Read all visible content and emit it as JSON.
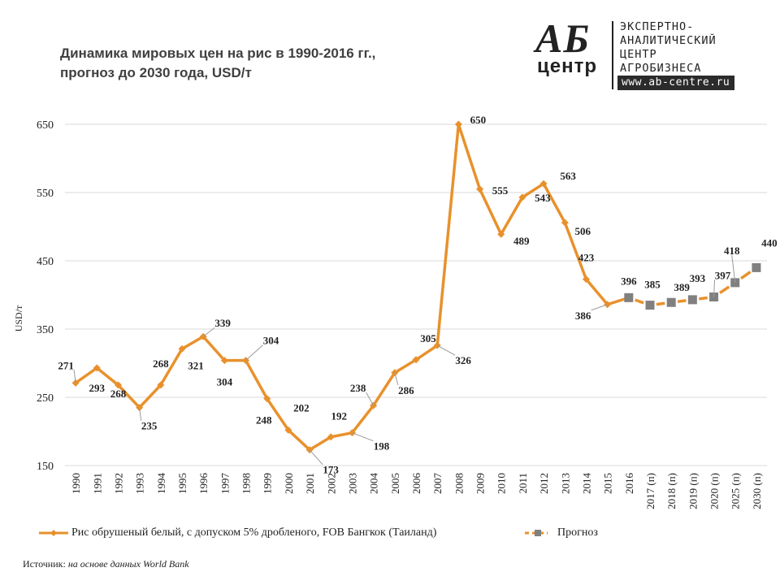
{
  "header": {
    "title_line1": "Динамика мировых цен на рис в 1990-2016 гг.,",
    "title_line2": "прогноз до 2030 года, USD/т"
  },
  "logo": {
    "mark_top": "АБ",
    "mark_bottom": "центр",
    "line1": "ЭКСПЕРТНО-",
    "line2": "АНАЛИТИЧЕСКИЙ",
    "line3": "ЦЕНТР",
    "line4": "АГРОБИЗНЕСА",
    "website": "www.ab-centre.ru"
  },
  "colors": {
    "series_line": "#E8912C",
    "forecast_marker": "#808080",
    "grid": "#D9D9D9",
    "text": "#222222"
  },
  "legend": {
    "item1": "Рис обрушеный белый, с допуском 5% дробленого, FOB Бангкок (Таиланд)",
    "item2": "Прогноз"
  },
  "source": {
    "label": "Источник:",
    "text": "на основе данных World Bank"
  },
  "chart_data": {
    "type": "line",
    "title": "Динамика мировых цен на рис в 1990-2016 гг., прогноз до 2030 года, USD/т",
    "xlabel": "",
    "ylabel": "USD/т",
    "ylim": [
      150,
      650
    ],
    "yticks": [
      150,
      250,
      350,
      450,
      550,
      650
    ],
    "grid": true,
    "legend_position": "bottom",
    "categories": [
      "1990",
      "1991",
      "1992",
      "1993",
      "1994",
      "1995",
      "1996",
      "1997",
      "1998",
      "1999",
      "2000",
      "2001",
      "2002",
      "2003",
      "2004",
      "2005",
      "2006",
      "2007",
      "2008",
      "2009",
      "2010",
      "2011",
      "2012",
      "2013",
      "2014",
      "2015",
      "2016",
      "2017 (п)",
      "2018 (п)",
      "2019 (п)",
      "2020 (п)",
      "2025 (п)",
      "2030 (п)"
    ],
    "series": [
      {
        "name": "Рис обрушеный белый, с допуском 5% дробленого, FOB Бангкок (Таиланд)",
        "values": [
          271,
          293,
          268,
          235,
          268,
          321,
          339,
          304,
          304,
          248,
          202,
          173,
          192,
          198,
          238,
          286,
          305,
          326,
          650,
          555,
          489,
          543,
          563,
          506,
          423,
          386,
          396,
          null,
          null,
          null,
          null,
          null,
          null
        ]
      },
      {
        "name": "Прогноз",
        "values": [
          null,
          null,
          null,
          null,
          null,
          null,
          null,
          null,
          null,
          null,
          null,
          null,
          null,
          null,
          null,
          null,
          null,
          null,
          null,
          null,
          null,
          null,
          null,
          null,
          null,
          null,
          396,
          385,
          389,
          393,
          397,
          418,
          440
        ]
      }
    ]
  }
}
